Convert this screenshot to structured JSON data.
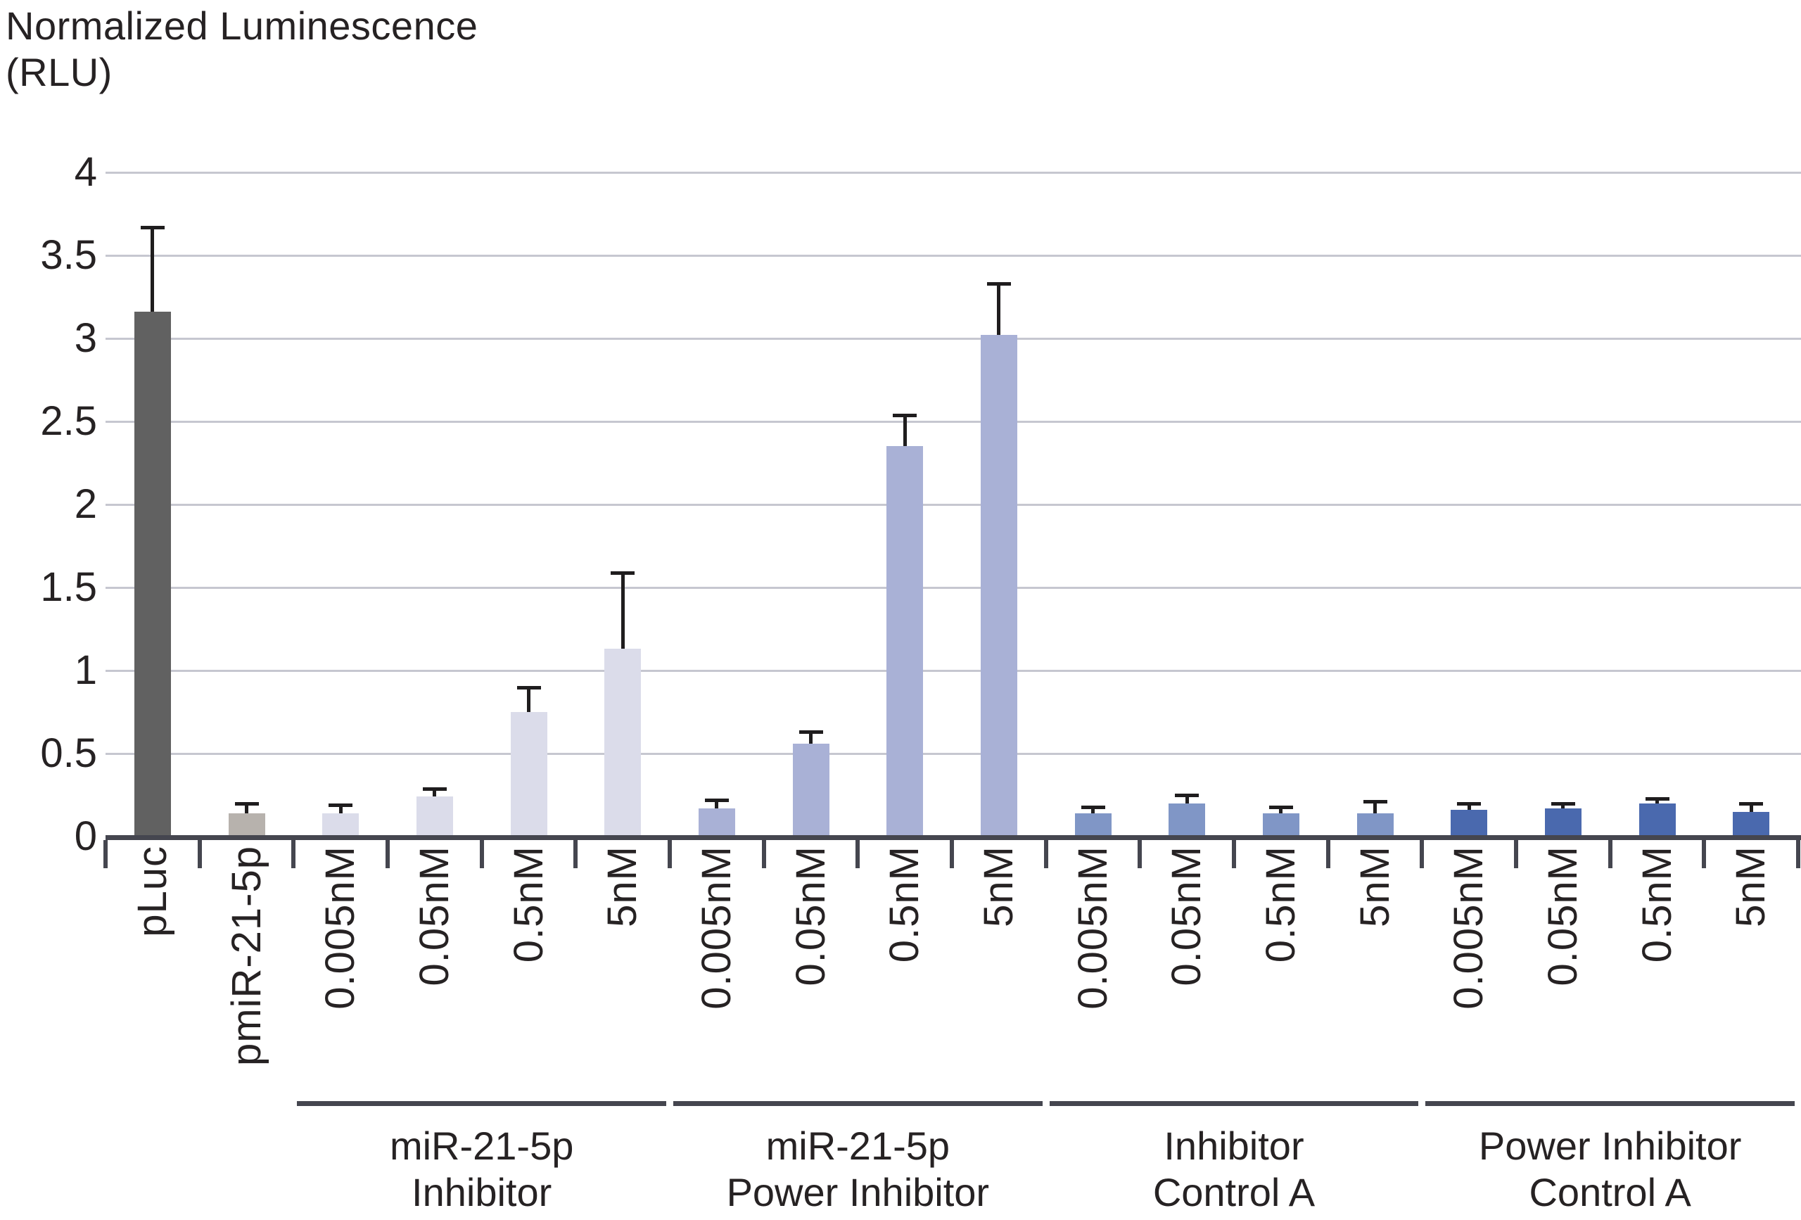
{
  "chart_data": {
    "type": "bar",
    "title": "Normalized Luminescence (RLU)",
    "ylabel_lines": [
      "Normalized Luminescence",
      "(RLU)"
    ],
    "ylim": [
      0,
      4
    ],
    "yticks": [
      0,
      0.5,
      1,
      1.5,
      2,
      2.5,
      3,
      3.5,
      4
    ],
    "ytick_labels": [
      "0",
      "0.5",
      "1",
      "1.5",
      "2",
      "2.5",
      "3",
      "3.5",
      "4"
    ],
    "grid": "horizontal-only",
    "legend_position": "none",
    "colors": {
      "pluc_bar": "#616161",
      "pmir_bar": "#b7b2ad",
      "inhibitor_bars": "#dbdcea",
      "power_inhibitor_bars": "#a9b1d6",
      "inhibitor_control_bars": "#8096c6",
      "power_inhibitor_control_bars": "#4a69ae",
      "axis": "#45464f",
      "gridline": "#c6c7d0",
      "error_bar": "#1f1d1e",
      "text": "#262223"
    },
    "categories": [
      {
        "label": "pLuc",
        "value": 3.16,
        "error_top": 3.67,
        "color": "#616161",
        "group": null
      },
      {
        "label": "pmiR-21-5p",
        "value": 0.14,
        "error_top": 0.2,
        "color": "#b7b2ad",
        "group": null
      },
      {
        "label": "0.005nM",
        "value": 0.14,
        "error_top": 0.19,
        "color": "#dbdcea",
        "group": "miR-21-5p Inhibitor"
      },
      {
        "label": "0.05nM",
        "value": 0.24,
        "error_top": 0.29,
        "color": "#dbdcea",
        "group": "miR-21-5p Inhibitor"
      },
      {
        "label": "0.5nM",
        "value": 0.75,
        "error_top": 0.9,
        "color": "#dbdcea",
        "group": "miR-21-5p Inhibitor"
      },
      {
        "label": "5nM",
        "value": 1.13,
        "error_top": 1.59,
        "color": "#dbdcea",
        "group": "miR-21-5p Inhibitor"
      },
      {
        "label": "0.005nM",
        "value": 0.17,
        "error_top": 0.22,
        "color": "#a9b1d6",
        "group": "miR-21-5p Power Inhibitor"
      },
      {
        "label": "0.05nM",
        "value": 0.56,
        "error_top": 0.63,
        "color": "#a9b1d6",
        "group": "miR-21-5p Power Inhibitor"
      },
      {
        "label": "0.5nM",
        "value": 2.35,
        "error_top": 2.54,
        "color": "#a9b1d6",
        "group": "miR-21-5p Power Inhibitor"
      },
      {
        "label": "5nM",
        "value": 3.02,
        "error_top": 3.33,
        "color": "#a9b1d6",
        "group": "miR-21-5p Power Inhibitor"
      },
      {
        "label": "0.005nM",
        "value": 0.14,
        "error_top": 0.18,
        "color": "#8096c6",
        "group": "Inhibitor Control A"
      },
      {
        "label": "0.05nM",
        "value": 0.2,
        "error_top": 0.25,
        "color": "#8096c6",
        "group": "Inhibitor Control A"
      },
      {
        "label": "0.5nM",
        "value": 0.14,
        "error_top": 0.18,
        "color": "#8096c6",
        "group": "Inhibitor Control A"
      },
      {
        "label": "5nM",
        "value": 0.14,
        "error_top": 0.21,
        "color": "#8096c6",
        "group": "Inhibitor Control A"
      },
      {
        "label": "0.005nM",
        "value": 0.16,
        "error_top": 0.2,
        "color": "#4a69ae",
        "group": "Power Inhibitor Control A"
      },
      {
        "label": "0.05nM",
        "value": 0.17,
        "error_top": 0.2,
        "color": "#4a69ae",
        "group": "Power Inhibitor Control A"
      },
      {
        "label": "0.5nM",
        "value": 0.2,
        "error_top": 0.23,
        "color": "#4a69ae",
        "group": "Power Inhibitor Control A"
      },
      {
        "label": "5nM",
        "value": 0.15,
        "error_top": 0.2,
        "color": "#4a69ae",
        "group": "Power Inhibitor Control A"
      }
    ],
    "groups": [
      {
        "label_lines": [
          "miR-21-5p",
          "Inhibitor"
        ],
        "start_index": 2,
        "end_index": 5
      },
      {
        "label_lines": [
          "miR-21-5p",
          "Power Inhibitor"
        ],
        "start_index": 6,
        "end_index": 9
      },
      {
        "label_lines": [
          "Inhibitor",
          "Control A"
        ],
        "start_index": 10,
        "end_index": 13
      },
      {
        "label_lines": [
          "Power Inhibitor",
          "Control A"
        ],
        "start_index": 14,
        "end_index": 17
      }
    ]
  }
}
